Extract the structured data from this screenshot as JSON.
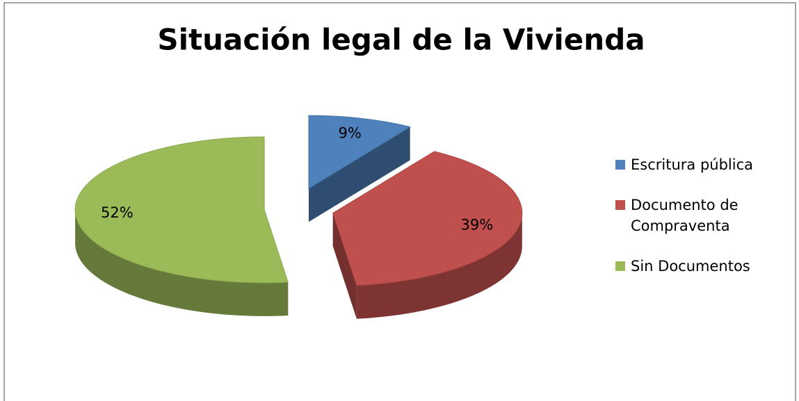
{
  "chart_data": {
    "type": "pie",
    "title": "Situación legal de la Vivienda",
    "categories": [
      "Escritura pública",
      "Documento de Compraventa",
      "Sin Documentos"
    ],
    "values": [
      9,
      39,
      52
    ],
    "value_labels": [
      "9%",
      "39%",
      "52%"
    ],
    "colors": [
      "#4f81bd",
      "#c0504d",
      "#9bbb59"
    ],
    "legend": "right"
  }
}
